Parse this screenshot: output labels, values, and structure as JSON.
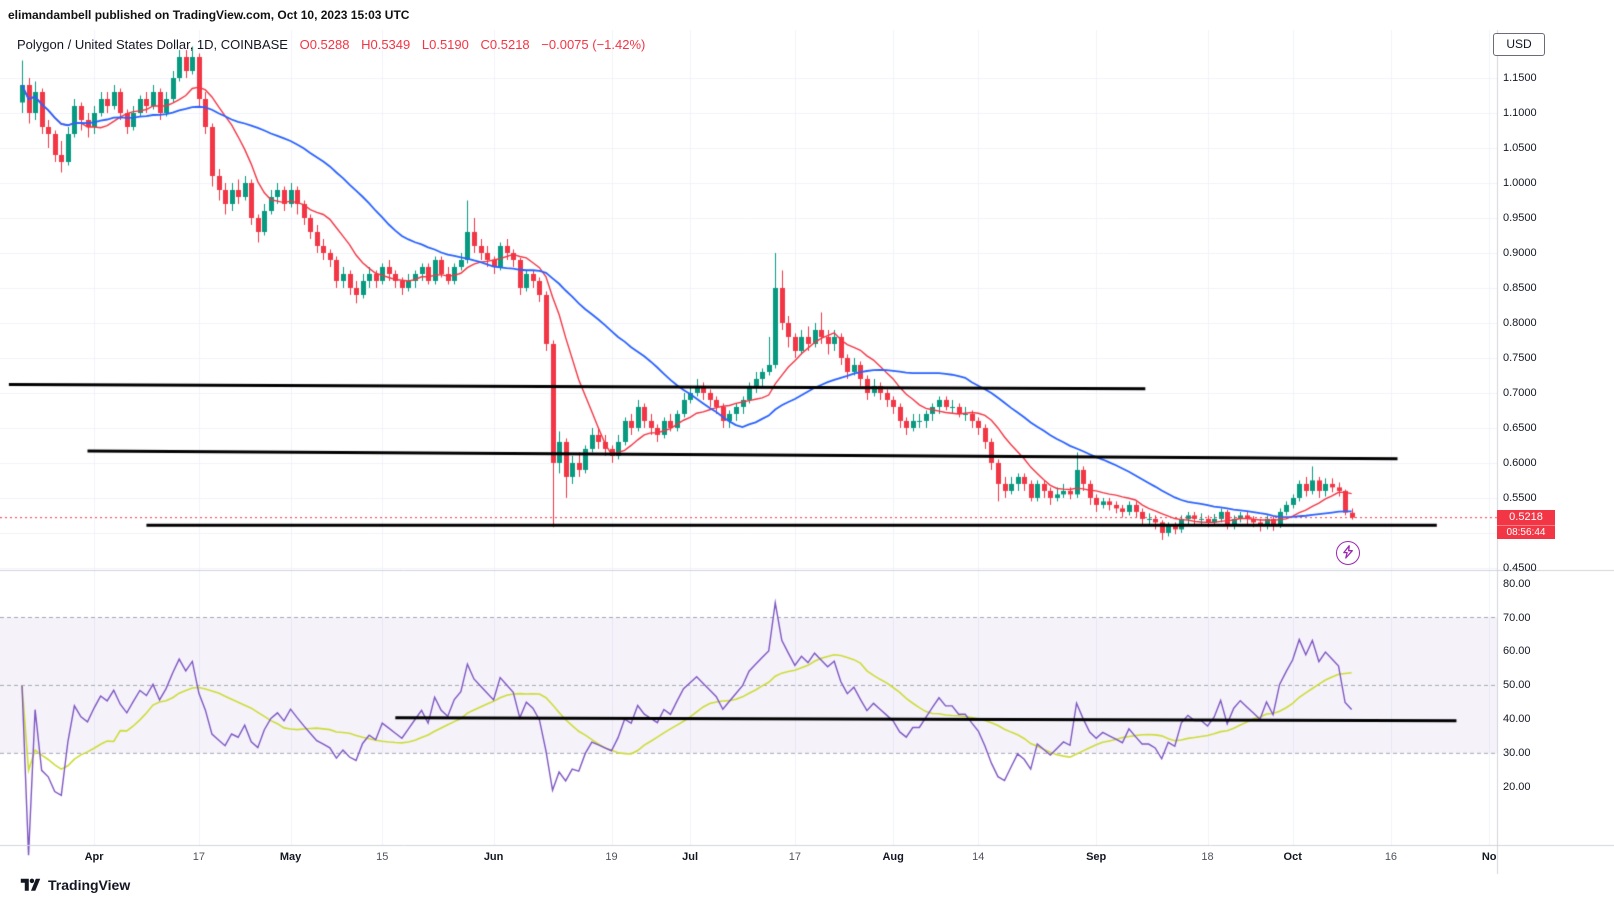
{
  "page": {
    "watermark": "elimandambell published on TradingView.com, Oct 10, 2023 15:03 UTC",
    "footer_logo_text": "TradingView"
  },
  "header": {
    "symbol_title": "Polygon / United States Dollar, 1D, COINBASE",
    "ohlc": {
      "open": "O0.5288",
      "high": "H0.5349",
      "low": "L0.5190",
      "close": "C0.5218",
      "change": "−0.0075 (−1.42%)"
    },
    "currency_button": "USD"
  },
  "price_scale": {
    "ticks": [
      "1.1500",
      "1.1000",
      "1.0500",
      "1.0000",
      "0.9500",
      "0.9000",
      "0.8500",
      "0.8000",
      "0.7500",
      "0.7000",
      "0.6500",
      "0.6000",
      "0.5500",
      "0.4500"
    ],
    "current_price_label": "0.5218",
    "countdown": "08:56:44"
  },
  "rsi_scale": {
    "ticks": [
      "80.00",
      "70.00",
      "60.00",
      "50.00",
      "40.00",
      "30.00",
      "20.00"
    ]
  },
  "time_axis": [
    {
      "label": "Apr",
      "i": 11,
      "month": true
    },
    {
      "label": "17",
      "i": 27,
      "month": false
    },
    {
      "label": "May",
      "i": 41,
      "month": true
    },
    {
      "label": "15",
      "i": 55,
      "month": false
    },
    {
      "label": "Jun",
      "i": 72,
      "month": true
    },
    {
      "label": "19",
      "i": 90,
      "month": false
    },
    {
      "label": "Jul",
      "i": 102,
      "month": true
    },
    {
      "label": "17",
      "i": 118,
      "month": false
    },
    {
      "label": "Aug",
      "i": 133,
      "month": true
    },
    {
      "label": "14",
      "i": 146,
      "month": false
    },
    {
      "label": "Sep",
      "i": 164,
      "month": true
    },
    {
      "label": "18",
      "i": 181,
      "month": false
    },
    {
      "label": "Oct",
      "i": 194,
      "month": true
    },
    {
      "label": "16",
      "i": 209,
      "month": false
    },
    {
      "label": "No",
      "i": 224,
      "month": true
    }
  ],
  "colors": {
    "up": "#089981",
    "down": "#f23645",
    "ma_fast": "#f23645",
    "ma_slow": "#2962ff",
    "rsi": "#7e57c2",
    "rsi_ma": "#cddc39",
    "band_fill": "rgba(126,87,194,0.08)",
    "dashed": "#a5a8b1",
    "grid": "#f0f3fa",
    "separator": "#d1d4dc",
    "trendline": "#000000",
    "accent_red": "#f23645",
    "boost_purple": "#9c27b0"
  },
  "chart_data": {
    "type": "candlestick",
    "title": "Polygon / United States Dollar, 1D, COINBASE",
    "interval": "1D",
    "exchange": "COINBASE",
    "first_candle_date": "2023-03-21",
    "current_price": 0.5218,
    "price_axis": {
      "min": 0.447,
      "max": 1.2186
    },
    "rsi_axis": {
      "min": 3,
      "max": 84
    },
    "indicators": {
      "ma_fast": {
        "type": "SMA",
        "length": 10
      },
      "ma_slow": {
        "type": "SMA",
        "length": 30
      },
      "rsi": {
        "length": 14,
        "ma_length": 14,
        "upper_band": 70,
        "middle_band": 50,
        "lower_band": 30
      }
    },
    "trendlines": [
      {
        "pane": "price",
        "i1": -2,
        "p1": 0.712,
        "i2": 171.5,
        "p2": 0.706
      },
      {
        "pane": "price",
        "i1": 10,
        "p1": 0.617,
        "i2": 210,
        "p2": 0.606
      },
      {
        "pane": "price",
        "i1": 19,
        "p1": 0.511,
        "i2": 216,
        "p2": 0.511
      },
      {
        "pane": "rsi",
        "i1": 57,
        "p1": 40.5,
        "i2": 219,
        "p2": 39.6
      }
    ],
    "candles": [
      [
        1.115,
        1.175,
        1.1,
        1.14
      ],
      [
        1.14,
        1.15,
        1.085,
        1.1
      ],
      [
        1.1,
        1.145,
        1.09,
        1.13
      ],
      [
        1.13,
        1.135,
        1.07,
        1.08
      ],
      [
        1.08,
        1.09,
        1.05,
        1.07
      ],
      [
        1.07,
        1.075,
        1.03,
        1.04
      ],
      [
        1.04,
        1.06,
        1.015,
        1.03
      ],
      [
        1.03,
        1.08,
        1.025,
        1.07
      ],
      [
        1.07,
        1.12,
        1.065,
        1.11
      ],
      [
        1.11,
        1.115,
        1.075,
        1.09
      ],
      [
        1.09,
        1.1,
        1.065,
        1.08
      ],
      [
        1.08,
        1.11,
        1.07,
        1.1
      ],
      [
        1.1,
        1.13,
        1.095,
        1.12
      ],
      [
        1.12,
        1.13,
        1.1,
        1.11
      ],
      [
        1.11,
        1.14,
        1.105,
        1.13
      ],
      [
        1.13,
        1.135,
        1.09,
        1.1
      ],
      [
        1.1,
        1.105,
        1.07,
        1.08
      ],
      [
        1.08,
        1.11,
        1.075,
        1.1
      ],
      [
        1.1,
        1.125,
        1.095,
        1.12
      ],
      [
        1.12,
        1.13,
        1.1,
        1.11
      ],
      [
        1.11,
        1.14,
        1.105,
        1.13
      ],
      [
        1.13,
        1.135,
        1.09,
        1.1
      ],
      [
        1.1,
        1.13,
        1.095,
        1.12
      ],
      [
        1.12,
        1.16,
        1.115,
        1.15
      ],
      [
        1.15,
        1.19,
        1.145,
        1.18
      ],
      [
        1.18,
        1.19,
        1.15,
        1.16
      ],
      [
        1.16,
        1.195,
        1.155,
        1.18
      ],
      [
        1.18,
        1.185,
        1.11,
        1.12
      ],
      [
        1.12,
        1.13,
        1.07,
        1.08
      ],
      [
        1.08,
        1.085,
        0.995,
        1.01
      ],
      [
        1.01,
        1.02,
        0.975,
        0.99
      ],
      [
        0.99,
        1.0,
        0.955,
        0.97
      ],
      [
        0.97,
        1.0,
        0.96,
        0.99
      ],
      [
        0.99,
        1.005,
        0.97,
        0.98
      ],
      [
        0.98,
        1.01,
        0.975,
        1.0
      ],
      [
        1.0,
        1.005,
        0.94,
        0.95
      ],
      [
        0.95,
        0.955,
        0.915,
        0.93
      ],
      [
        0.93,
        0.97,
        0.925,
        0.96
      ],
      [
        0.96,
        0.99,
        0.955,
        0.98
      ],
      [
        0.98,
        1.0,
        0.97,
        0.99
      ],
      [
        0.99,
        0.995,
        0.96,
        0.97
      ],
      [
        0.97,
        1.0,
        0.965,
        0.99
      ],
      [
        0.99,
        0.995,
        0.955,
        0.97
      ],
      [
        0.97,
        0.975,
        0.94,
        0.95
      ],
      [
        0.95,
        0.955,
        0.92,
        0.93
      ],
      [
        0.93,
        0.94,
        0.9,
        0.91
      ],
      [
        0.91,
        0.92,
        0.89,
        0.9
      ],
      [
        0.9,
        0.905,
        0.88,
        0.89
      ],
      [
        0.89,
        0.895,
        0.85,
        0.86
      ],
      [
        0.86,
        0.88,
        0.85,
        0.87
      ],
      [
        0.87,
        0.875,
        0.84,
        0.85
      ],
      [
        0.85,
        0.86,
        0.828,
        0.84
      ],
      [
        0.84,
        0.87,
        0.835,
        0.86
      ],
      [
        0.86,
        0.88,
        0.85,
        0.87
      ],
      [
        0.87,
        0.875,
        0.85,
        0.86
      ],
      [
        0.86,
        0.885,
        0.855,
        0.88
      ],
      [
        0.88,
        0.89,
        0.86,
        0.87
      ],
      [
        0.87,
        0.875,
        0.85,
        0.86
      ],
      [
        0.86,
        0.865,
        0.84,
        0.85
      ],
      [
        0.85,
        0.87,
        0.845,
        0.86
      ],
      [
        0.86,
        0.875,
        0.85,
        0.87
      ],
      [
        0.87,
        0.885,
        0.86,
        0.88
      ],
      [
        0.88,
        0.885,
        0.855,
        0.86
      ],
      [
        0.86,
        0.895,
        0.855,
        0.89
      ],
      [
        0.89,
        0.895,
        0.865,
        0.87
      ],
      [
        0.87,
        0.88,
        0.855,
        0.86
      ],
      [
        0.86,
        0.885,
        0.855,
        0.88
      ],
      [
        0.88,
        0.9,
        0.875,
        0.89
      ],
      [
        0.89,
        0.975,
        0.885,
        0.93
      ],
      [
        0.93,
        0.95,
        0.9,
        0.91
      ],
      [
        0.91,
        0.92,
        0.89,
        0.9
      ],
      [
        0.9,
        0.91,
        0.88,
        0.89
      ],
      [
        0.89,
        0.895,
        0.87,
        0.88
      ],
      [
        0.88,
        0.915,
        0.875,
        0.91
      ],
      [
        0.91,
        0.92,
        0.89,
        0.9
      ],
      [
        0.9,
        0.905,
        0.88,
        0.89
      ],
      [
        0.89,
        0.893,
        0.84,
        0.85
      ],
      [
        0.85,
        0.875,
        0.845,
        0.87
      ],
      [
        0.87,
        0.875,
        0.85,
        0.86
      ],
      [
        0.86,
        0.865,
        0.83,
        0.84
      ],
      [
        0.84,
        0.845,
        0.76,
        0.77
      ],
      [
        0.77,
        0.775,
        0.508,
        0.6
      ],
      [
        0.6,
        0.645,
        0.585,
        0.63
      ],
      [
        0.63,
        0.635,
        0.55,
        0.58
      ],
      [
        0.58,
        0.61,
        0.57,
        0.6
      ],
      [
        0.6,
        0.615,
        0.58,
        0.59
      ],
      [
        0.59,
        0.625,
        0.585,
        0.62
      ],
      [
        0.62,
        0.65,
        0.615,
        0.64
      ],
      [
        0.64,
        0.65,
        0.62,
        0.63
      ],
      [
        0.63,
        0.64,
        0.61,
        0.62
      ],
      [
        0.62,
        0.625,
        0.6,
        0.61
      ],
      [
        0.61,
        0.64,
        0.605,
        0.63
      ],
      [
        0.63,
        0.665,
        0.625,
        0.66
      ],
      [
        0.66,
        0.67,
        0.64,
        0.65
      ],
      [
        0.65,
        0.69,
        0.645,
        0.68
      ],
      [
        0.68,
        0.685,
        0.65,
        0.66
      ],
      [
        0.66,
        0.67,
        0.64,
        0.65
      ],
      [
        0.65,
        0.655,
        0.63,
        0.64
      ],
      [
        0.64,
        0.665,
        0.635,
        0.66
      ],
      [
        0.66,
        0.67,
        0.645,
        0.65
      ],
      [
        0.65,
        0.675,
        0.645,
        0.67
      ],
      [
        0.67,
        0.7,
        0.665,
        0.69
      ],
      [
        0.69,
        0.71,
        0.685,
        0.7
      ],
      [
        0.7,
        0.72,
        0.695,
        0.71
      ],
      [
        0.71,
        0.715,
        0.69,
        0.7
      ],
      [
        0.7,
        0.705,
        0.68,
        0.69
      ],
      [
        0.69,
        0.695,
        0.67,
        0.68
      ],
      [
        0.68,
        0.685,
        0.65,
        0.66
      ],
      [
        0.66,
        0.675,
        0.65,
        0.67
      ],
      [
        0.67,
        0.685,
        0.66,
        0.68
      ],
      [
        0.68,
        0.695,
        0.67,
        0.69
      ],
      [
        0.69,
        0.715,
        0.685,
        0.71
      ],
      [
        0.71,
        0.73,
        0.7,
        0.72
      ],
      [
        0.72,
        0.735,
        0.71,
        0.73
      ],
      [
        0.73,
        0.78,
        0.725,
        0.74
      ],
      [
        0.74,
        0.9,
        0.735,
        0.85
      ],
      [
        0.85,
        0.875,
        0.79,
        0.8
      ],
      [
        0.8,
        0.81,
        0.765,
        0.78
      ],
      [
        0.78,
        0.785,
        0.75,
        0.76
      ],
      [
        0.76,
        0.79,
        0.755,
        0.78
      ],
      [
        0.78,
        0.795,
        0.76,
        0.77
      ],
      [
        0.77,
        0.8,
        0.765,
        0.79
      ],
      [
        0.79,
        0.815,
        0.77,
        0.78
      ],
      [
        0.78,
        0.79,
        0.755,
        0.77
      ],
      [
        0.77,
        0.79,
        0.76,
        0.78
      ],
      [
        0.78,
        0.785,
        0.74,
        0.75
      ],
      [
        0.75,
        0.755,
        0.72,
        0.73
      ],
      [
        0.73,
        0.75,
        0.725,
        0.74
      ],
      [
        0.74,
        0.745,
        0.71,
        0.72
      ],
      [
        0.72,
        0.725,
        0.69,
        0.7
      ],
      [
        0.7,
        0.72,
        0.695,
        0.71
      ],
      [
        0.71,
        0.715,
        0.69,
        0.7
      ],
      [
        0.7,
        0.705,
        0.68,
        0.69
      ],
      [
        0.69,
        0.695,
        0.67,
        0.68
      ],
      [
        0.68,
        0.685,
        0.65,
        0.66
      ],
      [
        0.66,
        0.665,
        0.64,
        0.65
      ],
      [
        0.65,
        0.67,
        0.645,
        0.66
      ],
      [
        0.66,
        0.67,
        0.65,
        0.66
      ],
      [
        0.66,
        0.675,
        0.65,
        0.67
      ],
      [
        0.67,
        0.685,
        0.66,
        0.68
      ],
      [
        0.68,
        0.695,
        0.67,
        0.69
      ],
      [
        0.69,
        0.695,
        0.675,
        0.68
      ],
      [
        0.68,
        0.69,
        0.67,
        0.68
      ],
      [
        0.68,
        0.685,
        0.665,
        0.67
      ],
      [
        0.67,
        0.68,
        0.66,
        0.67
      ],
      [
        0.67,
        0.675,
        0.65,
        0.66
      ],
      [
        0.66,
        0.665,
        0.64,
        0.65
      ],
      [
        0.65,
        0.655,
        0.62,
        0.63
      ],
      [
        0.63,
        0.635,
        0.59,
        0.6
      ],
      [
        0.6,
        0.605,
        0.545,
        0.57
      ],
      [
        0.57,
        0.58,
        0.55,
        0.56
      ],
      [
        0.56,
        0.58,
        0.555,
        0.57
      ],
      [
        0.57,
        0.585,
        0.56,
        0.58
      ],
      [
        0.58,
        0.585,
        0.56,
        0.57
      ],
      [
        0.57,
        0.575,
        0.545,
        0.55
      ],
      [
        0.55,
        0.575,
        0.545,
        0.57
      ],
      [
        0.57,
        0.575,
        0.55,
        0.56
      ],
      [
        0.56,
        0.565,
        0.54,
        0.55
      ],
      [
        0.55,
        0.565,
        0.545,
        0.555
      ],
      [
        0.555,
        0.57,
        0.55,
        0.56
      ],
      [
        0.56,
        0.565,
        0.548,
        0.555
      ],
      [
        0.555,
        0.615,
        0.55,
        0.59
      ],
      [
        0.59,
        0.595,
        0.56,
        0.57
      ],
      [
        0.57,
        0.575,
        0.54,
        0.55
      ],
      [
        0.55,
        0.555,
        0.53,
        0.54
      ],
      [
        0.54,
        0.55,
        0.535,
        0.545
      ],
      [
        0.545,
        0.55,
        0.532,
        0.54
      ],
      [
        0.54,
        0.545,
        0.528,
        0.535
      ],
      [
        0.535,
        0.54,
        0.522,
        0.53
      ],
      [
        0.53,
        0.545,
        0.525,
        0.54
      ],
      [
        0.54,
        0.545,
        0.522,
        0.53
      ],
      [
        0.53,
        0.535,
        0.51,
        0.52
      ],
      [
        0.52,
        0.528,
        0.512,
        0.52
      ],
      [
        0.52,
        0.525,
        0.505,
        0.515
      ],
      [
        0.515,
        0.518,
        0.49,
        0.5
      ],
      [
        0.5,
        0.515,
        0.495,
        0.51
      ],
      [
        0.51,
        0.515,
        0.498,
        0.505
      ],
      [
        0.505,
        0.525,
        0.5,
        0.52
      ],
      [
        0.52,
        0.53,
        0.512,
        0.525
      ],
      [
        0.525,
        0.53,
        0.512,
        0.52
      ],
      [
        0.52,
        0.528,
        0.51,
        0.52
      ],
      [
        0.52,
        0.525,
        0.508,
        0.515
      ],
      [
        0.515,
        0.527,
        0.51,
        0.52
      ],
      [
        0.52,
        0.535,
        0.515,
        0.53
      ],
      [
        0.53,
        0.533,
        0.505,
        0.51
      ],
      [
        0.51,
        0.525,
        0.505,
        0.52
      ],
      [
        0.52,
        0.53,
        0.515,
        0.525
      ],
      [
        0.525,
        0.53,
        0.512,
        0.52
      ],
      [
        0.52,
        0.524,
        0.508,
        0.515
      ],
      [
        0.515,
        0.52,
        0.502,
        0.51
      ],
      [
        0.51,
        0.525,
        0.505,
        0.52
      ],
      [
        0.52,
        0.523,
        0.503,
        0.51
      ],
      [
        0.51,
        0.535,
        0.507,
        0.53
      ],
      [
        0.53,
        0.545,
        0.525,
        0.54
      ],
      [
        0.54,
        0.555,
        0.535,
        0.55
      ],
      [
        0.55,
        0.575,
        0.545,
        0.57
      ],
      [
        0.57,
        0.58,
        0.552,
        0.56
      ],
      [
        0.56,
        0.595,
        0.555,
        0.575
      ],
      [
        0.575,
        0.58,
        0.55,
        0.56
      ],
      [
        0.56,
        0.578,
        0.552,
        0.57
      ],
      [
        0.57,
        0.578,
        0.558,
        0.565
      ],
      [
        0.565,
        0.572,
        0.552,
        0.56
      ],
      [
        0.56,
        0.562,
        0.525,
        0.529
      ],
      [
        0.5288,
        0.5349,
        0.519,
        0.5218
      ]
    ]
  }
}
